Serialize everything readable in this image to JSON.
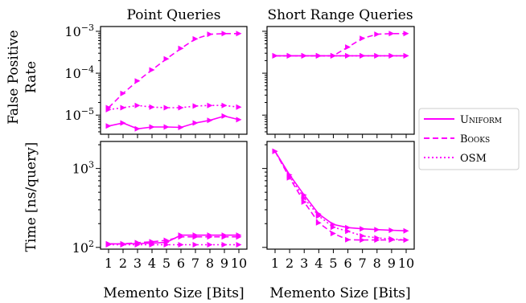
{
  "figure": {
    "ylabel_top_line1": "False Positive",
    "ylabel_top_line2": "Rate",
    "ylabel_bottom": "Time [ns/query]",
    "color": "#ff00ff"
  },
  "chart_data": [
    {
      "type": "line",
      "title": "Point Queries",
      "xlabel": "",
      "ylabel": "False Positive Rate",
      "yscale": "log",
      "ylim": [
        3.5e-06,
        0.0013
      ],
      "yticks": [
        "10^-5",
        "10^-4",
        "10^-3"
      ],
      "x": [
        1,
        2,
        3,
        4,
        5,
        6,
        7,
        8,
        9,
        10
      ],
      "series": [
        {
          "name": "Uniform",
          "style": "solid",
          "values": [
            5.5e-06,
            6.5e-06,
            4.7e-06,
            5.2e-06,
            5.2e-06,
            5.1e-06,
            6.5e-06,
            7.5e-06,
            9.5e-06,
            7.8e-06
          ]
        },
        {
          "name": "Books",
          "style": "dashed",
          "values": [
            1.5e-05,
            3.3e-05,
            6.5e-05,
            0.00012,
            0.00022,
            0.00039,
            0.00066,
            0.00085,
            0.00088,
            0.00088
          ]
        },
        {
          "name": "OSM",
          "style": "dotted",
          "values": [
            1.35e-05,
            1.5e-05,
            1.7e-05,
            1.55e-05,
            1.5e-05,
            1.5e-05,
            1.65e-05,
            1.7e-05,
            1.7e-05,
            1.55e-05
          ]
        }
      ]
    },
    {
      "type": "line",
      "title": "Short Range Queries",
      "xlabel": "",
      "ylabel": "",
      "yscale": "log",
      "ylim": [
        3.5e-06,
        0.0013
      ],
      "x": [
        1,
        2,
        3,
        4,
        5,
        6,
        7,
        8,
        9,
        10
      ],
      "series": [
        {
          "name": "Uniform",
          "style": "solid",
          "values": [
            0.00026,
            0.00026,
            0.00026,
            0.00026,
            0.00026,
            0.00026,
            0.00026,
            0.00026,
            0.00026,
            0.00026
          ]
        },
        {
          "name": "Books",
          "style": "dashed",
          "values": [
            0.00026,
            0.00026,
            0.00026,
            0.00026,
            0.00026,
            0.00042,
            0.00068,
            0.00085,
            0.00088,
            0.00088
          ]
        },
        {
          "name": "OSM",
          "style": "dotted",
          "values": [
            0.00026,
            0.00026,
            0.00026,
            0.00026,
            0.00026,
            0.00026,
            0.00026,
            0.00026,
            0.00026,
            0.00026
          ]
        }
      ]
    },
    {
      "type": "line",
      "title": "",
      "xlabel": "Memento Size [Bits]",
      "ylabel": "Time [ns/query]",
      "yscale": "log",
      "ylim": [
        95,
        2200
      ],
      "yticks": [
        "10^2",
        "10^3"
      ],
      "x": [
        1,
        2,
        3,
        4,
        5,
        6,
        7,
        8,
        9,
        10
      ],
      "xticklabels": [
        "1",
        "2",
        "3",
        "4",
        "5",
        "6",
        "7",
        "8",
        "9",
        "10"
      ],
      "series": [
        {
          "name": "Uniform",
          "style": "solid",
          "values": [
            111,
            111,
            112,
            113,
            116,
            143,
            143,
            143,
            143,
            143
          ]
        },
        {
          "name": "Books",
          "style": "dashed",
          "values": [
            111,
            111,
            115,
            118,
            123,
            136,
            136,
            136,
            136,
            136
          ]
        },
        {
          "name": "OSM",
          "style": "dotted",
          "values": [
            108,
            108,
            108,
            108,
            108,
            108,
            108,
            108,
            108,
            108
          ]
        }
      ]
    },
    {
      "type": "line",
      "title": "",
      "xlabel": "Memento Size [Bits]",
      "ylabel": "",
      "yscale": "log",
      "ylim": [
        95,
        2200
      ],
      "x": [
        1,
        2,
        3,
        4,
        5,
        6,
        7,
        8,
        9,
        10
      ],
      "xticklabels": [
        "1",
        "2",
        "3",
        "4",
        "5",
        "6",
        "7",
        "8",
        "9",
        "10"
      ],
      "series": [
        {
          "name": "Uniform",
          "style": "solid",
          "values": [
            1650,
            830,
            460,
            265,
            195,
            178,
            172,
            168,
            165,
            162
          ]
        },
        {
          "name": "Books",
          "style": "dashed",
          "values": [
            1650,
            760,
            375,
            205,
            150,
            125,
            124,
            124,
            124,
            124
          ]
        },
        {
          "name": "OSM",
          "style": "dotted",
          "values": [
            1650,
            790,
            420,
            250,
            180,
            160,
            140,
            132,
            128,
            124
          ]
        }
      ]
    }
  ],
  "legend": {
    "placement": "right",
    "entries": [
      {
        "label": "Uniform",
        "style": "solid"
      },
      {
        "label": "Books",
        "style": "dashed"
      },
      {
        "label": "OSM",
        "style": "dotted"
      }
    ]
  }
}
